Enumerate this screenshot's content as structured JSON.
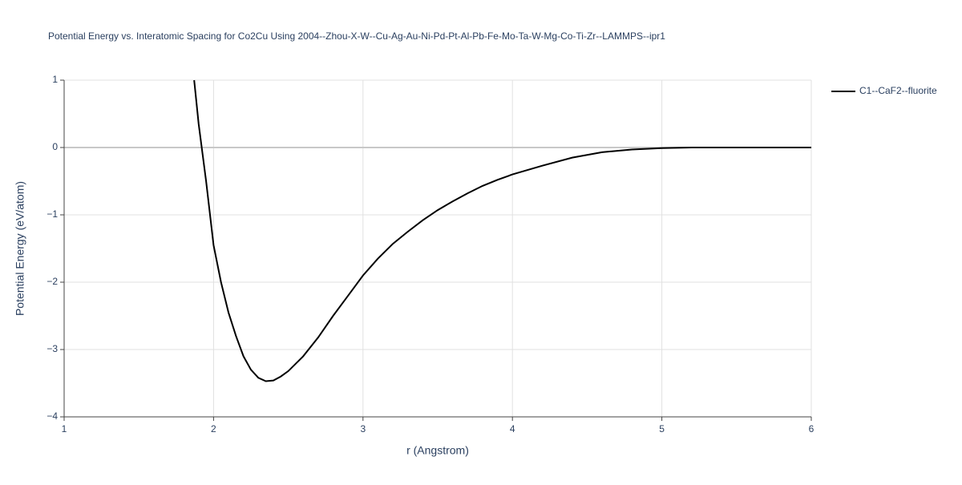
{
  "chart_data": {
    "type": "line",
    "title": "Potential Energy vs. Interatomic Spacing for Co2Cu Using 2004--Zhou-X-W--Cu-Ag-Au-Ni-Pd-Pt-Al-Pb-Fe-Mo-Ta-W-Mg-Co-Ti-Zr--LAMMPS--ipr1",
    "x_label": "r (Angstrom)",
    "y_label": "Potential Energy (eV/atom)",
    "x": [
      1.87,
      1.9,
      1.95,
      2.0,
      2.05,
      2.1,
      2.15,
      2.2,
      2.25,
      2.3,
      2.35,
      2.4,
      2.45,
      2.5,
      2.6,
      2.7,
      2.8,
      2.9,
      3.0,
      3.1,
      3.2,
      3.3,
      3.4,
      3.5,
      3.6,
      3.7,
      3.8,
      3.9,
      4.0,
      4.2,
      4.4,
      4.6,
      4.8,
      5.0,
      5.2,
      5.6,
      6.0
    ],
    "series": [
      {
        "name": "C1--CaF2--fluorite",
        "color": "#000000",
        "values": [
          1,
          0.35,
          -0.5,
          -1.45,
          -2.0,
          -2.45,
          -2.8,
          -3.1,
          -3.3,
          -3.42,
          -3.47,
          -3.46,
          -3.4,
          -3.32,
          -3.1,
          -2.82,
          -2.5,
          -2.2,
          -1.9,
          -1.65,
          -1.43,
          -1.25,
          -1.08,
          -0.93,
          -0.8,
          -0.68,
          -0.57,
          -0.48,
          -0.4,
          -0.27,
          -0.15,
          -0.07,
          -0.03,
          -0.01,
          0,
          0,
          0
        ]
      }
    ],
    "xlim": [
      1,
      6
    ],
    "ylim": [
      -4,
      1
    ],
    "xticks": [
      1,
      2,
      3,
      4,
      5,
      6
    ],
    "yticks": [
      {
        "value": -4,
        "label": "−4"
      },
      {
        "value": -3,
        "label": "−3"
      },
      {
        "value": -2,
        "label": "−2"
      },
      {
        "value": -1,
        "label": "−1"
      },
      0,
      1
    ],
    "grid": true,
    "legend": "top-right"
  }
}
